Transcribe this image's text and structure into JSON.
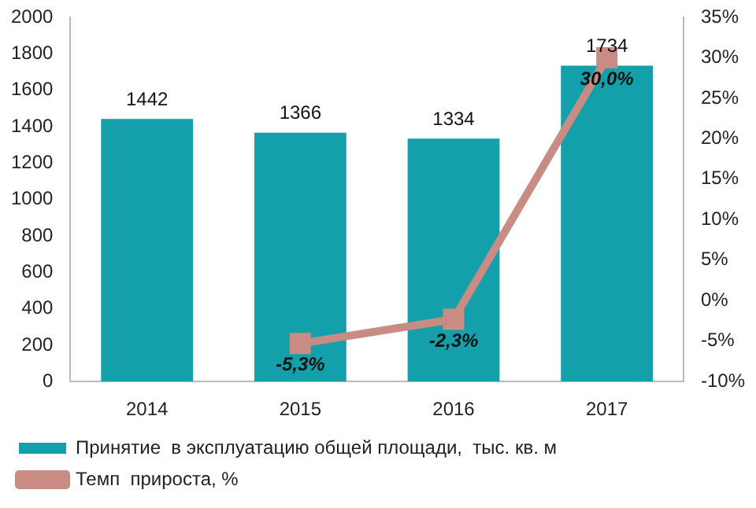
{
  "chart_data": {
    "type": "bar",
    "categories": [
      "2014",
      "2015",
      "2016",
      "2017"
    ],
    "series": [
      {
        "name": "Принятие  в эксплуатацию общей площади,  тыс. кв. м",
        "color": "#13a0ab",
        "values": [
          1442,
          1366,
          1334,
          1734
        ],
        "value_labels": [
          "1442",
          "1366",
          "1334",
          "1734"
        ]
      },
      {
        "name": "Темп  прироста, %",
        "type": "line",
        "axis": "y2",
        "color": "#c98c84",
        "marker": "square",
        "values": [
          null,
          -5.3,
          -2.3,
          30.0
        ],
        "value_labels": [
          null,
          "-5,3%",
          "-2,3%",
          "30,0%"
        ]
      }
    ],
    "ylim": [
      0,
      2000
    ],
    "yticks": [
      0,
      200,
      400,
      600,
      800,
      1000,
      1200,
      1400,
      1600,
      1800,
      2000
    ],
    "y2lim": [
      -10,
      35
    ],
    "y2ticks": [
      {
        "value": -10,
        "label": "-10%"
      },
      {
        "value": -5,
        "label": "-5%"
      },
      {
        "value": 0,
        "label": "0%"
      },
      {
        "value": 5,
        "label": "5%"
      },
      {
        "value": 10,
        "label": "10%"
      },
      {
        "value": 15,
        "label": "15%"
      },
      {
        "value": 20,
        "label": "20%"
      },
      {
        "value": 25,
        "label": "25%"
      },
      {
        "value": 30,
        "label": "30%"
      },
      {
        "value": 35,
        "label": "35%"
      }
    ],
    "grid": false,
    "legend": "bottom"
  }
}
